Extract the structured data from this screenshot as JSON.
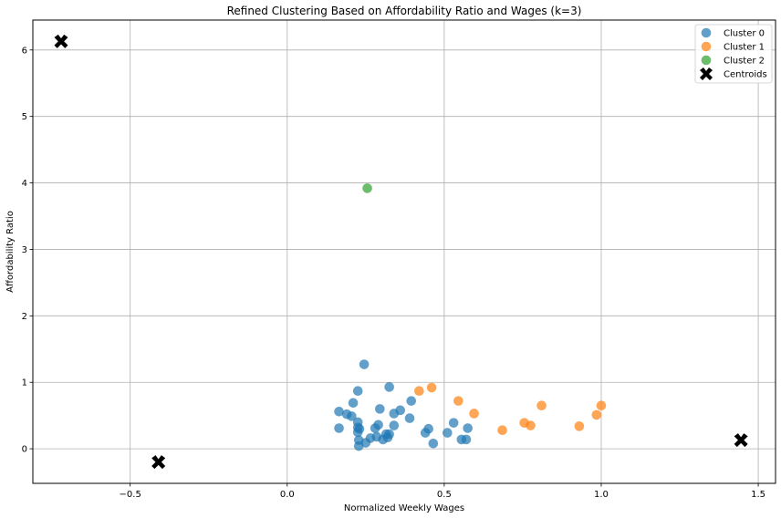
{
  "chart_data": {
    "type": "scatter",
    "title": "Refined Clustering Based on Affordability Ratio and Wages (k=3)",
    "xlabel": "Normalized Weekly Wages",
    "ylabel": "Affordability Ratio",
    "xlim": [
      -0.81,
      1.555
    ],
    "ylim": [
      -0.52,
      6.45
    ],
    "xticks": [
      -0.5,
      0.0,
      0.5,
      1.0,
      1.5
    ],
    "xtick_labels": [
      "−0.5",
      "0.0",
      "0.5",
      "1.0",
      "1.5"
    ],
    "yticks": [
      0,
      1,
      2,
      3,
      4,
      5,
      6
    ],
    "ytick_labels": [
      "0",
      "1",
      "2",
      "3",
      "4",
      "5",
      "6"
    ],
    "grid": true,
    "legend_position": "top-right",
    "series": [
      {
        "name": "Cluster 0",
        "color": "#1f77b4",
        "marker": "circle",
        "points": [
          [
            0.165,
            0.56
          ],
          [
            0.165,
            0.31
          ],
          [
            0.19,
            0.52
          ],
          [
            0.205,
            0.49
          ],
          [
            0.21,
            0.69
          ],
          [
            0.225,
            0.87
          ],
          [
            0.225,
            0.4
          ],
          [
            0.225,
            0.32
          ],
          [
            0.225,
            0.25
          ],
          [
            0.228,
            0.13
          ],
          [
            0.228,
            0.04
          ],
          [
            0.23,
            0.3
          ],
          [
            0.245,
            1.27
          ],
          [
            0.25,
            0.09
          ],
          [
            0.265,
            0.16
          ],
          [
            0.28,
            0.31
          ],
          [
            0.285,
            0.18
          ],
          [
            0.29,
            0.36
          ],
          [
            0.295,
            0.6
          ],
          [
            0.305,
            0.14
          ],
          [
            0.315,
            0.22
          ],
          [
            0.32,
            0.17
          ],
          [
            0.325,
            0.93
          ],
          [
            0.325,
            0.22
          ],
          [
            0.34,
            0.35
          ],
          [
            0.34,
            0.53
          ],
          [
            0.36,
            0.58
          ],
          [
            0.39,
            0.46
          ],
          [
            0.395,
            0.72
          ],
          [
            0.44,
            0.24
          ],
          [
            0.45,
            0.3
          ],
          [
            0.465,
            0.08
          ],
          [
            0.51,
            0.24
          ],
          [
            0.53,
            0.39
          ],
          [
            0.555,
            0.14
          ],
          [
            0.57,
            0.14
          ],
          [
            0.575,
            0.31
          ]
        ]
      },
      {
        "name": "Cluster 1",
        "color": "#ff7f0e",
        "marker": "circle",
        "points": [
          [
            0.42,
            0.87
          ],
          [
            0.46,
            0.92
          ],
          [
            0.545,
            0.72
          ],
          [
            0.595,
            0.53
          ],
          [
            0.685,
            0.28
          ],
          [
            0.755,
            0.39
          ],
          [
            0.775,
            0.35
          ],
          [
            0.81,
            0.65
          ],
          [
            0.93,
            0.34
          ],
          [
            0.985,
            0.51
          ],
          [
            1.0,
            0.65
          ]
        ]
      },
      {
        "name": "Cluster 2",
        "color": "#2ca02c",
        "marker": "circle",
        "points": [
          [
            0.255,
            3.92
          ]
        ]
      },
      {
        "name": "Centroids",
        "color": "#000000",
        "marker": "X",
        "points": [
          [
            -0.72,
            6.13
          ],
          [
            -0.41,
            -0.2
          ],
          [
            1.445,
            0.13
          ]
        ]
      }
    ]
  }
}
